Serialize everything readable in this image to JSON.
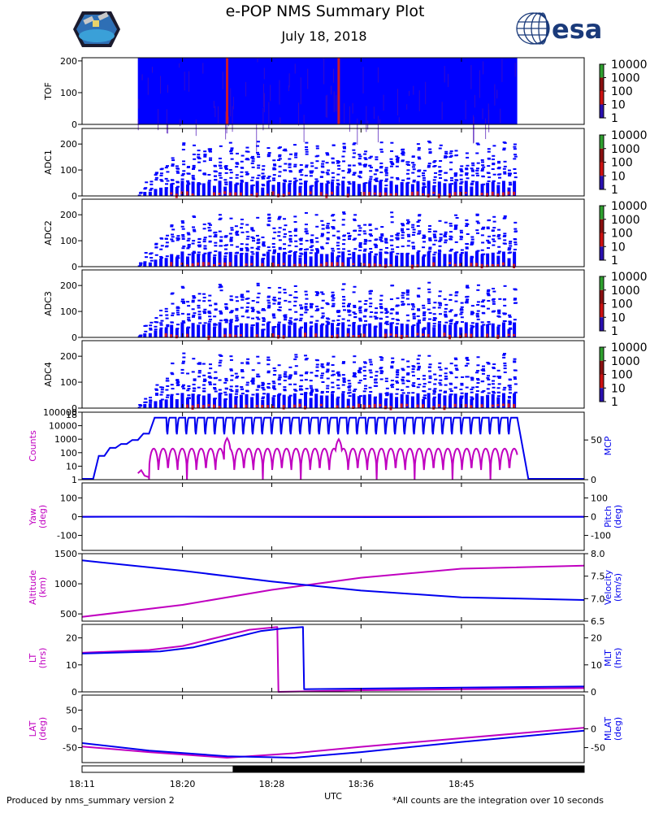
{
  "header": {
    "title": "e-POP NMS Summary Plot",
    "date": "July 18, 2018",
    "esa_text": "esa"
  },
  "footer": {
    "left": "Produced by nms_summary version 2",
    "right": "*All counts are the integration over 10 seconds",
    "x_axis_label": "UTC"
  },
  "colors": {
    "counts": "#c000c0",
    "blue": "#0000ee",
    "spectro_bg": "#0000ff",
    "spectro_hot": "#cc1a2e",
    "cbar_green": "#2fa02f",
    "cbar_red": "#cc1111"
  },
  "chart_data": [
    {
      "type": "heatmap",
      "id": "tof",
      "ylabel": "TOF",
      "ylim": [
        0,
        210
      ],
      "yticks": [
        0,
        100,
        200
      ],
      "fill_start": "18:16",
      "fill_end": "18:50",
      "hot_columns": [
        "18:24",
        "18:34"
      ],
      "colorbar_ticks": [
        "10000",
        "1000",
        "100",
        "10",
        "1"
      ]
    },
    {
      "type": "heatmap",
      "id": "adc1",
      "ylabel": "ADC1",
      "ylim": [
        0,
        260
      ],
      "yticks": [
        0,
        100,
        200
      ],
      "colorbar_ticks": [
        "10000",
        "1000",
        "100",
        "10",
        "1"
      ]
    },
    {
      "type": "heatmap",
      "id": "adc2",
      "ylabel": "ADC2",
      "ylim": [
        0,
        260
      ],
      "yticks": [
        0,
        100,
        200
      ],
      "colorbar_ticks": [
        "10000",
        "1000",
        "100",
        "10",
        "1"
      ]
    },
    {
      "type": "heatmap",
      "id": "adc3",
      "ylabel": "ADC3",
      "ylim": [
        0,
        260
      ],
      "yticks": [
        0,
        100,
        200
      ],
      "colorbar_ticks": [
        "10000",
        "1000",
        "100",
        "10",
        "1"
      ]
    },
    {
      "type": "heatmap",
      "id": "adc4",
      "ylabel": "ADC4",
      "ylim": [
        0,
        260
      ],
      "yticks": [
        0,
        100,
        200
      ],
      "colorbar_ticks": [
        "10000",
        "1000",
        "100",
        "10",
        "1"
      ]
    },
    {
      "type": "line",
      "id": "counts_mcp",
      "ylabel_left": "Counts",
      "ylabel_right": "MCP",
      "left_scale": "log",
      "left_ylim": [
        1,
        100000
      ],
      "left_ticks": [
        "1",
        "10",
        "100",
        "1000",
        "10000",
        "100000"
      ],
      "right_ylim": [
        0,
        85
      ],
      "right_ticks": [
        "0",
        "50"
      ],
      "corner_label": "18",
      "series": [
        {
          "name": "MCP",
          "axis": "right",
          "color": "blue",
          "x": [
            "18:11",
            "18:12",
            "18:12.5",
            "18:13",
            "18:13.5",
            "18:14",
            "18:14.5",
            "18:15",
            "18:15.5",
            "18:16",
            "18:16.5",
            "18:17",
            "18:17.5",
            "18:18",
            "18:50",
            "18:51",
            "18:56"
          ],
          "y": [
            1,
            1,
            30,
            30,
            40,
            40,
            45,
            45,
            50,
            50,
            58,
            58,
            78,
            78,
            78,
            1,
            1
          ],
          "oscillate": {
            "start": "18:18",
            "end": "18:50",
            "period_min": 0.85,
            "low": 55,
            "high": 78
          }
        },
        {
          "name": "Counts",
          "axis": "left",
          "color": "counts",
          "x": [
            "18:16",
            "18:16.3",
            "18:16.6",
            "18:17"
          ],
          "y": [
            3,
            5,
            2,
            1.5
          ],
          "oscillate": {
            "start": "18:17",
            "end": "18:50",
            "period_min": 0.85,
            "low": 1,
            "high": 200
          },
          "peaks": [
            {
              "x": "18:24",
              "y": 1200
            },
            {
              "x": "18:34",
              "y": 1000
            }
          ]
        }
      ]
    },
    {
      "type": "line",
      "id": "yaw_pitch",
      "ylabel_left": "Yaw",
      "ylabel_left_unit": "(deg)",
      "ylabel_right": "Pitch",
      "ylabel_right_unit": "(deg)",
      "ylim": [
        -180,
        180
      ],
      "left_ticks": [
        "-100",
        "0",
        "100"
      ],
      "right_ticks": [
        "-100",
        "0",
        "100"
      ],
      "series": [
        {
          "name": "Yaw",
          "axis": "left",
          "color": "counts",
          "x": [
            "18:11",
            "18:56"
          ],
          "y": [
            0,
            0
          ]
        },
        {
          "name": "Pitch",
          "axis": "right",
          "color": "blue",
          "x": [
            "18:11",
            "18:20",
            "18:37",
            "18:56"
          ],
          "y": [
            -1,
            0,
            -2,
            -1
          ]
        }
      ]
    },
    {
      "type": "line",
      "id": "alt_vel",
      "ylabel_left": "Altitude",
      "ylabel_left_unit": "(km)",
      "ylabel_right": "Velocity",
      "ylabel_right_unit": "(km/s)",
      "left_ylim": [
        380,
        1500
      ],
      "left_ticks": [
        "500",
        "1000",
        "1500"
      ],
      "right_ylim": [
        6.5,
        8.0
      ],
      "right_ticks": [
        "6.5",
        "7.0",
        "7.5",
        "8.0"
      ],
      "series": [
        {
          "name": "Altitude",
          "axis": "left",
          "color": "counts",
          "x": [
            "18:11",
            "18:20",
            "18:28",
            "18:36",
            "18:45",
            "18:56"
          ],
          "y": [
            450,
            650,
            900,
            1100,
            1250,
            1300
          ]
        },
        {
          "name": "Velocity",
          "axis": "right",
          "color": "blue",
          "x": [
            "18:11",
            "18:20",
            "18:28",
            "18:36",
            "18:45",
            "18:56"
          ],
          "y": [
            7.85,
            7.62,
            7.38,
            7.18,
            7.03,
            6.97
          ]
        }
      ]
    },
    {
      "type": "line",
      "id": "lt_mlt",
      "ylabel_left": "LT",
      "ylabel_left_unit": "(hrs)",
      "ylabel_right": "MLT",
      "ylabel_right_unit": "(hrs)",
      "ylim": [
        0,
        25
      ],
      "left_ticks": [
        "0",
        "10",
        "20"
      ],
      "right_ticks": [
        "0",
        "10",
        "20"
      ],
      "series": [
        {
          "name": "LT",
          "axis": "left",
          "color": "counts",
          "x": [
            "18:11",
            "18:17",
            "18:20",
            "18:23",
            "18:26",
            "18:28.5",
            "18:28.6",
            "18:36",
            "18:45",
            "18:56"
          ],
          "y": [
            14.5,
            15.5,
            17,
            20,
            23,
            24,
            0,
            0.6,
            1.0,
            1.4
          ]
        },
        {
          "name": "MLT",
          "axis": "right",
          "color": "blue",
          "x": [
            "18:11",
            "18:18",
            "18:21",
            "18:24",
            "18:27",
            "18:29",
            "18:30.8",
            "18:30.9",
            "18:36",
            "18:45",
            "18:56"
          ],
          "y": [
            14.2,
            15,
            16.5,
            19.5,
            22.5,
            23.5,
            24,
            1,
            1.2,
            1.6,
            2.0
          ]
        }
      ]
    },
    {
      "type": "line",
      "id": "lat_mlat",
      "ylabel_left": "LAT",
      "ylabel_left_unit": "(deg)",
      "ylabel_right": "MLAT",
      "ylabel_right_unit": "(deg)",
      "ylim": [
        -90,
        90
      ],
      "left_ticks": [
        "-50",
        "0",
        "50"
      ],
      "right_ticks": [
        "-50",
        "0"
      ],
      "series": [
        {
          "name": "LAT",
          "axis": "left",
          "color": "counts",
          "x": [
            "18:11",
            "18:17",
            "18:24",
            "18:30",
            "18:36",
            "18:45",
            "18:56"
          ],
          "y": [
            -47,
            -62,
            -77,
            -65,
            -48,
            -25,
            3
          ]
        },
        {
          "name": "MLAT",
          "axis": "right",
          "color": "blue",
          "x": [
            "18:11",
            "18:17",
            "18:24",
            "18:30",
            "18:36",
            "18:45",
            "18:56"
          ],
          "y": [
            -38,
            -58,
            -73,
            -77,
            -62,
            -35,
            -5
          ]
        }
      ]
    }
  ],
  "x_axis": {
    "xlim": [
      "18:11",
      "18:56"
    ],
    "tick_labels": [
      "18:11",
      "18:20",
      "18:28",
      "18:36",
      "18:45"
    ],
    "sunlight_bar": {
      "dark_start": "18:24.5",
      "dark_end": "18:56"
    }
  }
}
